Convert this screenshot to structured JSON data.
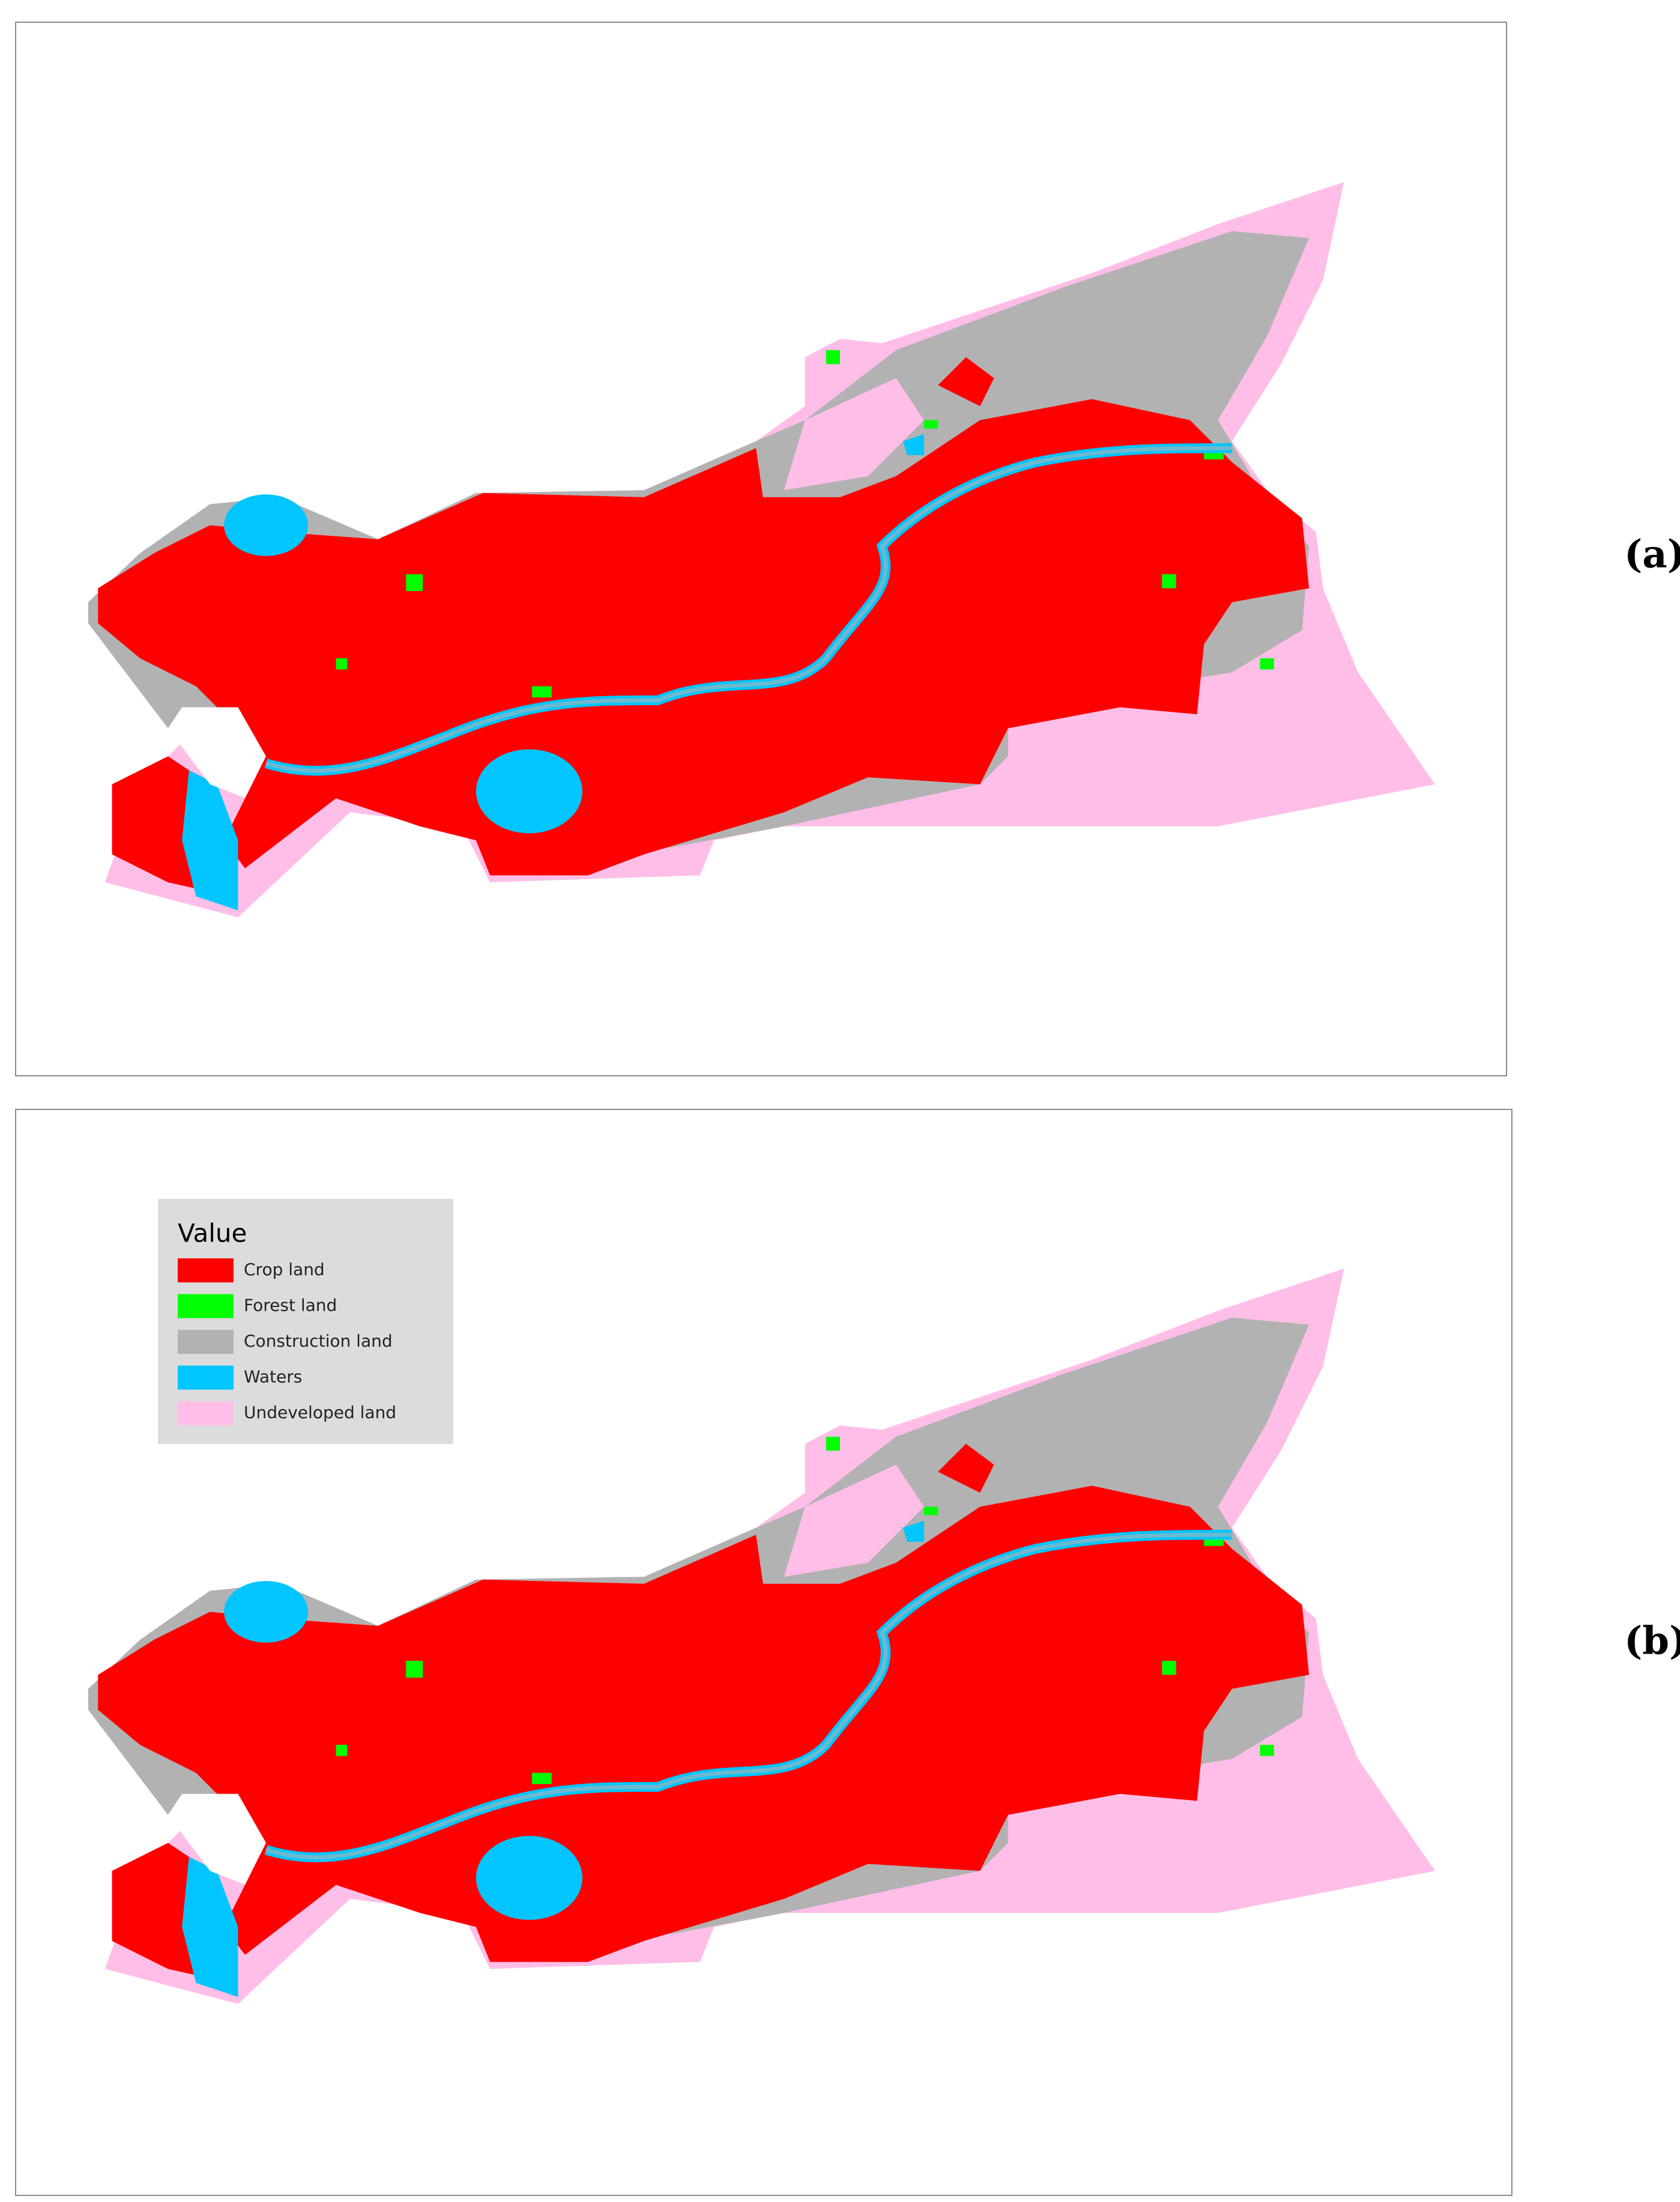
{
  "panels": [
    {
      "label": "(a)"
    },
    {
      "label": "(b)"
    }
  ],
  "legend": {
    "title": "Value",
    "items": [
      {
        "name": "Crop land",
        "color": "#ff0000"
      },
      {
        "name": "Forest land",
        "color": "#00ff00"
      },
      {
        "name": "Construction land",
        "color": "#b2b2b2"
      },
      {
        "name": "Waters",
        "color": "#00c5ff"
      },
      {
        "name": "Undeveloped land",
        "color": "#ffbee8"
      }
    ]
  }
}
